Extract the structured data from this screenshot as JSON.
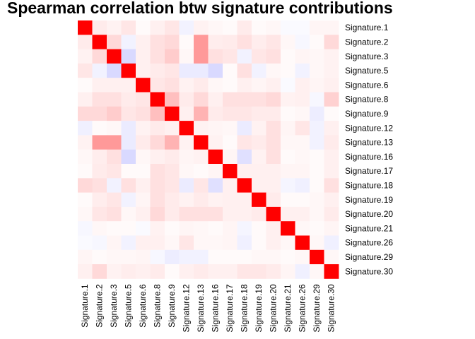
{
  "chart_data": {
    "type": "heatmap",
    "title": "Spearman correlation btw signature contributions",
    "row_labels": [
      "Signature.1",
      "Signature.2",
      "Signature.3",
      "Signature.5",
      "Signature.6",
      "Signature.8",
      "Signature.9",
      "Signature.12",
      "Signature.13",
      "Signature.16",
      "Signature.17",
      "Signature.18",
      "Signature.19",
      "Signature.20",
      "Signature.21",
      "Signature.26",
      "Signature.29",
      "Signature.30"
    ],
    "col_labels": [
      "Signature.1",
      "Signature.2",
      "Signature.3",
      "Signature.5",
      "Signature.6",
      "Signature.8",
      "Signature.9",
      "Signature.12",
      "Signature.13",
      "Signature.16",
      "Signature.17",
      "Signature.18",
      "Signature.19",
      "Signature.20",
      "Signature.21",
      "Signature.26",
      "Signature.29",
      "Signature.30"
    ],
    "value_range": [
      -1,
      1
    ],
    "colors": {
      "negative": "#0000ff",
      "zero": "#ffffff",
      "positive": "#ff0000"
    },
    "matrix": [
      [
        1.0,
        0.08,
        0.05,
        0.1,
        0.02,
        0.06,
        0.1,
        -0.05,
        0.05,
        0.03,
        0.02,
        0.08,
        0.02,
        0.03,
        -0.02,
        -0.02,
        0.04,
        0.04
      ],
      [
        0.08,
        1.0,
        0.15,
        -0.05,
        0.06,
        0.12,
        0.15,
        0.02,
        0.4,
        0.07,
        0.08,
        0.12,
        0.07,
        0.1,
        0.03,
        -0.03,
        0.02,
        0.15
      ],
      [
        0.05,
        0.15,
        1.0,
        -0.15,
        0.06,
        0.12,
        0.2,
        0.03,
        0.4,
        0.12,
        0.1,
        -0.05,
        0.1,
        0.12,
        0.02,
        0.04,
        0.03,
        0.05
      ],
      [
        0.1,
        -0.05,
        -0.15,
        1.0,
        0.06,
        0.08,
        0.1,
        -0.08,
        -0.08,
        -0.15,
        0.02,
        0.12,
        -0.05,
        0.03,
        0.02,
        -0.05,
        0.03,
        0.05
      ],
      [
        0.02,
        0.06,
        0.06,
        0.06,
        1.0,
        0.1,
        0.12,
        0.05,
        0.08,
        0.03,
        0.02,
        0.06,
        0.04,
        0.06,
        -0.02,
        0.06,
        0.04,
        0.06
      ],
      [
        0.06,
        0.12,
        0.12,
        0.08,
        0.1,
        1.0,
        0.25,
        0.08,
        0.15,
        0.06,
        0.12,
        0.12,
        0.12,
        0.15,
        0.05,
        0.06,
        -0.03,
        0.18
      ],
      [
        0.15,
        0.15,
        0.2,
        0.1,
        0.12,
        0.25,
        1.0,
        0.06,
        0.3,
        0.08,
        0.1,
        0.1,
        0.08,
        0.08,
        0.02,
        0.03,
        -0.07,
        0.02
      ],
      [
        -0.06,
        0.02,
        0.03,
        -0.08,
        0.05,
        0.08,
        0.06,
        1.0,
        0.05,
        0.04,
        0.03,
        -0.08,
        0.05,
        0.12,
        0.04,
        0.1,
        -0.05,
        0.06
      ],
      [
        0.05,
        0.4,
        0.4,
        -0.08,
        0.08,
        0.15,
        0.3,
        0.05,
        1.0,
        0.05,
        0.02,
        0.1,
        0.08,
        0.12,
        0.03,
        0.03,
        -0.05,
        0.08
      ],
      [
        0.03,
        0.07,
        0.12,
        -0.15,
        0.03,
        0.06,
        0.08,
        0.04,
        0.05,
        1.0,
        0.04,
        -0.12,
        0.05,
        0.12,
        0.02,
        0.03,
        0.02,
        0.06
      ],
      [
        0.02,
        0.08,
        0.1,
        0.02,
        0.02,
        0.12,
        0.1,
        0.03,
        0.02,
        0.04,
        1.0,
        0.06,
        0.06,
        0.06,
        0.04,
        0.04,
        0.02,
        0.06
      ],
      [
        0.15,
        0.12,
        -0.05,
        0.12,
        0.06,
        0.12,
        0.1,
        -0.08,
        0.1,
        -0.12,
        0.06,
        1.0,
        0.06,
        0.06,
        -0.04,
        -0.06,
        0.02,
        0.12
      ],
      [
        0.02,
        0.07,
        0.1,
        -0.05,
        0.04,
        0.12,
        0.08,
        0.05,
        0.08,
        0.05,
        0.06,
        0.06,
        1.0,
        0.08,
        0.02,
        0.02,
        0.03,
        0.06
      ],
      [
        0.03,
        0.1,
        0.12,
        0.03,
        0.06,
        0.15,
        0.08,
        0.12,
        0.12,
        0.12,
        0.06,
        0.06,
        0.08,
        1.0,
        0.06,
        0.06,
        0.03,
        0.08
      ],
      [
        -0.03,
        0.03,
        0.02,
        0.02,
        -0.02,
        0.05,
        0.02,
        0.04,
        0.03,
        0.02,
        0.04,
        -0.04,
        0.02,
        0.06,
        1.0,
        0.03,
        0.02,
        0.04
      ],
      [
        -0.02,
        -0.03,
        0.04,
        -0.05,
        0.06,
        0.06,
        0.03,
        0.1,
        0.03,
        0.03,
        0.04,
        -0.06,
        0.02,
        0.06,
        0.03,
        1.0,
        0.03,
        -0.06
      ],
      [
        0.04,
        0.02,
        0.03,
        0.03,
        0.04,
        -0.03,
        -0.07,
        -0.05,
        -0.05,
        0.02,
        0.02,
        0.02,
        0.03,
        0.03,
        0.02,
        0.03,
        1.0,
        0.03
      ],
      [
        0.06,
        0.15,
        0.05,
        0.07,
        0.06,
        0.08,
        0.02,
        0.06,
        0.08,
        0.06,
        0.06,
        0.1,
        0.1,
        0.08,
        0.04,
        -0.06,
        0.03,
        1.0
      ]
    ]
  }
}
